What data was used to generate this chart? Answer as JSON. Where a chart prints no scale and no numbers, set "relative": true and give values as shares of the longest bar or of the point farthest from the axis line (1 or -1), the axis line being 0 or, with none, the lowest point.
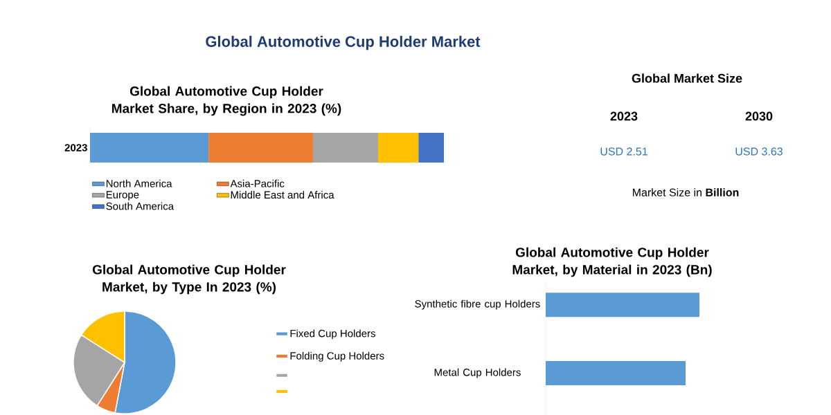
{
  "chart_data": [
    {
      "type": "bar",
      "title": "Global Automotive Cup Holder Market",
      "subtitle": "Global Automotive Cup Holder Market Share, by Region in 2023 (%)",
      "orientation": "horizontal",
      "stacked": true,
      "relative": true,
      "legend": "bottom",
      "categories": [
        "2023"
      ],
      "series": [
        {
          "name": "North America",
          "color": "#5b9bd5",
          "values": [
            0.335
          ]
        },
        {
          "name": "Asia-Pacific",
          "color": "#ed7d31",
          "values": [
            0.295
          ]
        },
        {
          "name": "Europe",
          "color": "#a5a5a5",
          "values": [
            0.184
          ]
        },
        {
          "name": "Middle East and Africa",
          "color": "#ffc000",
          "values": [
            0.114
          ]
        },
        {
          "name": "South America",
          "color": "#4472c4",
          "values": [
            0.072
          ]
        }
      ]
    },
    {
      "type": "other",
      "title": "Global Market Size",
      "categories": [
        "2023",
        "2030"
      ],
      "value_labels": [
        "USD 2.51",
        "USD 3.63"
      ],
      "annotations": [
        "Market Size in **Billion**"
      ]
    },
    {
      "type": "pie",
      "title": "Global Automotive Cup Holder Market, by Type In 2023 (%)",
      "legend": "right",
      "categories": [
        "Fixed Cup Holders",
        "Folding Cup Holders",
        null,
        null
      ],
      "values": [
        53,
        6,
        25,
        16
      ],
      "colors": [
        "#5b9bd5",
        "#ed7d31",
        "#a5a5a5",
        "#ffc000"
      ]
    },
    {
      "type": "bar",
      "title": "Global Automotive Cup Holder Market, by Material in 2023 (Bn)",
      "orientation": "horizontal",
      "relative": true,
      "categories": [
        "Synthetic fibre cup Holders",
        "Metal Cup Holders"
      ],
      "values": [
        1,
        0.91
      ],
      "color": "#5b9bd5"
    }
  ]
}
